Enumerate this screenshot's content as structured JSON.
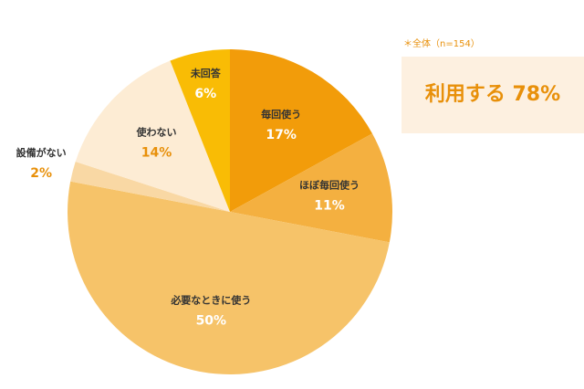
{
  "chart_data": {
    "type": "pie",
    "categories": [
      "毎回使う",
      "ほぼ毎回使う",
      "必要なときに使う",
      "設備がない",
      "使わない",
      "未回答"
    ],
    "values": [
      17,
      11,
      50,
      2,
      14,
      6
    ],
    "value_labels": [
      "17%",
      "11%",
      "50%",
      "2%",
      "14%",
      "6%"
    ],
    "colors": [
      "#f29c0a",
      "#f4b040",
      "#f6c369",
      "#f9d8a4",
      "#fdecd4",
      "#f9bc05"
    ],
    "note": "＊全体（n=154）",
    "callout": "利用する 78%"
  }
}
